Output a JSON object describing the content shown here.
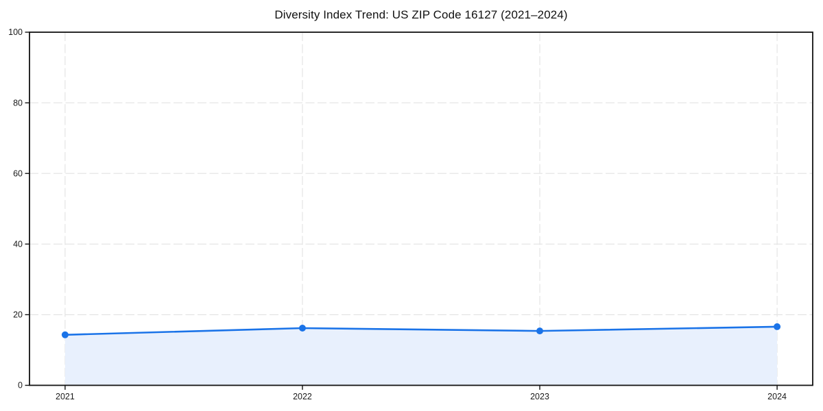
{
  "chart_data": {
    "type": "line",
    "title": "Diversity Index Trend: US ZIP Code 16127 (2021–2024)",
    "categories": [
      "2021",
      "2022",
      "2023",
      "2024"
    ],
    "x": [
      2021,
      2022,
      2023,
      2024
    ],
    "series": [
      {
        "name": "Diversity Index",
        "values": [
          14.3,
          16.2,
          15.4,
          16.6
        ]
      }
    ],
    "xlabel": "",
    "ylabel": "",
    "ylim": [
      0,
      100
    ],
    "yticks": [
      0,
      20,
      40,
      60,
      80,
      100
    ],
    "grid": true,
    "grid_style": "dashed",
    "legend_position": "none",
    "area_fill": true,
    "marker": "circle",
    "colors": {
      "line": "#1a73e8",
      "marker": "#1a73e8",
      "area_fill": "#e8f0fd",
      "grid": "#e2e2e2",
      "spine": "#111111",
      "tick_text": "#1a1a1a",
      "title_text": "#111111",
      "background": "#ffffff"
    }
  }
}
